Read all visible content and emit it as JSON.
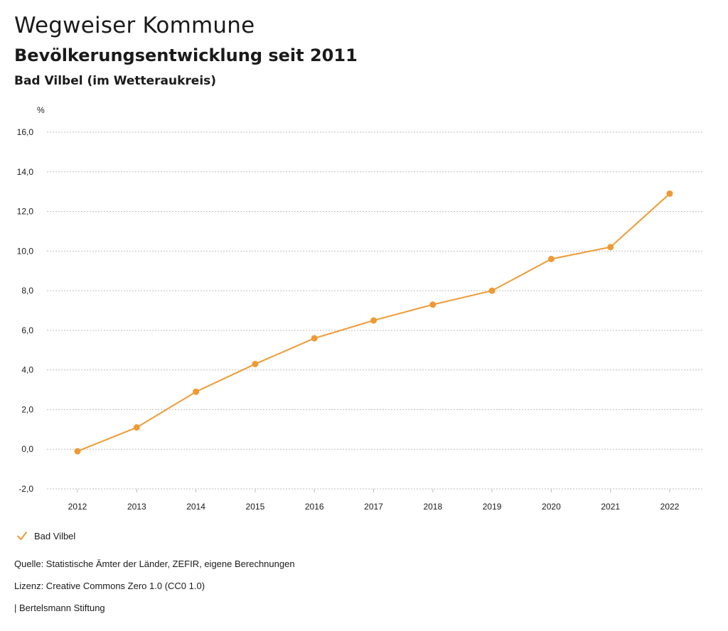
{
  "header": {
    "title": "Wegweiser Kommune",
    "subtitle": "Bevölkerungsentwicklung seit 2011",
    "region": "Bad Vilbel (im Wetteraukreis)"
  },
  "colors": {
    "series": "#EE9A35",
    "grid": "#bdbdbd"
  },
  "chart_data": {
    "type": "line",
    "ylabel": "%",
    "x": [
      "2012",
      "2013",
      "2014",
      "2015",
      "2016",
      "2017",
      "2018",
      "2019",
      "2020",
      "2021",
      "2022"
    ],
    "series": [
      {
        "name": "Bad Vilbel",
        "values": [
          -0.1,
          1.1,
          2.9,
          4.3,
          5.6,
          6.5,
          7.3,
          8.0,
          9.6,
          10.2,
          12.9
        ]
      }
    ],
    "ylim": [
      -2,
      16
    ],
    "yticks": [
      -2,
      0,
      2,
      4,
      6,
      8,
      10,
      12,
      14,
      16
    ],
    "ytick_labels": [
      "-2,0",
      "0,0",
      "2,0",
      "4,0",
      "6,0",
      "8,0",
      "10,0",
      "12,0",
      "14,0",
      "16,0"
    ],
    "grid": true,
    "legend_position": "bottom-left"
  },
  "legend": {
    "label": "Bad Vilbel"
  },
  "footer": {
    "source": "Quelle: Statistische Ämter der Länder, ZEFIR, eigene Berechnungen",
    "license": "Lizenz: Creative Commons Zero 1.0 (CC0 1.0)",
    "brand": "| Bertelsmann Stiftung"
  }
}
